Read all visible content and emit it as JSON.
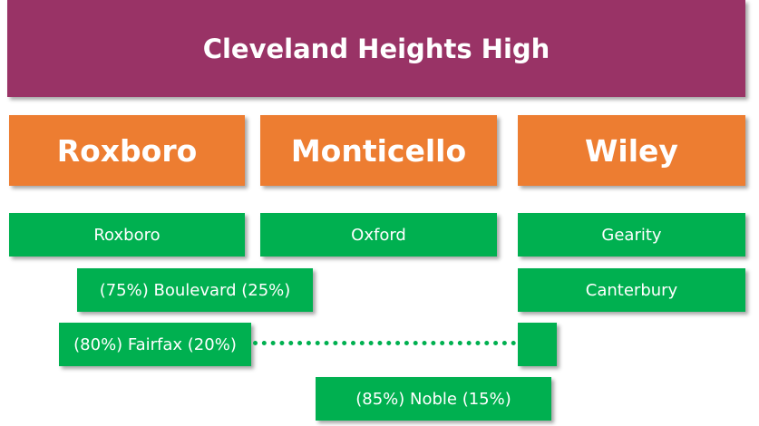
{
  "header": {
    "title": "Cleveland Heights High"
  },
  "middle_schools": [
    "Roxboro",
    "Monticello",
    "Wiley"
  ],
  "elementary": [
    "Roxboro",
    "Oxford",
    "Gearity",
    "(75%) Boulevard (25%)",
    "Canterbury",
    "(80%) Fairfax (20%)",
    "(85%) Noble (15%)"
  ]
}
